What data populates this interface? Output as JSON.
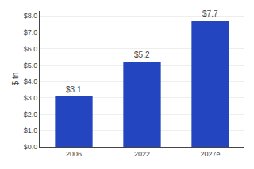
{
  "chart_data": {
    "type": "bar",
    "ylabel": "$ tn",
    "categories": [
      "2006",
      "2022",
      "2027e"
    ],
    "values": [
      3.1,
      5.2,
      7.7
    ],
    "value_labels": [
      "$3.1",
      "$5.2",
      "$7.7"
    ],
    "data_labels": true,
    "color": "#2346c0",
    "ylim": [
      0,
      8.3
    ],
    "yticks": [
      {
        "value": 0.0,
        "label": "$0.0"
      },
      {
        "value": 1.0,
        "label": "$1.0"
      },
      {
        "value": 2.0,
        "label": "$2.0"
      },
      {
        "value": 3.0,
        "label": "$3.0"
      },
      {
        "value": 4.0,
        "label": "$4.0"
      },
      {
        "value": 5.0,
        "label": "$5.0"
      },
      {
        "value": 6.0,
        "label": "$6.0"
      },
      {
        "value": 7.0,
        "label": "$7.0"
      },
      {
        "value": 8.0,
        "label": "$8.0"
      }
    ],
    "grid": true
  }
}
